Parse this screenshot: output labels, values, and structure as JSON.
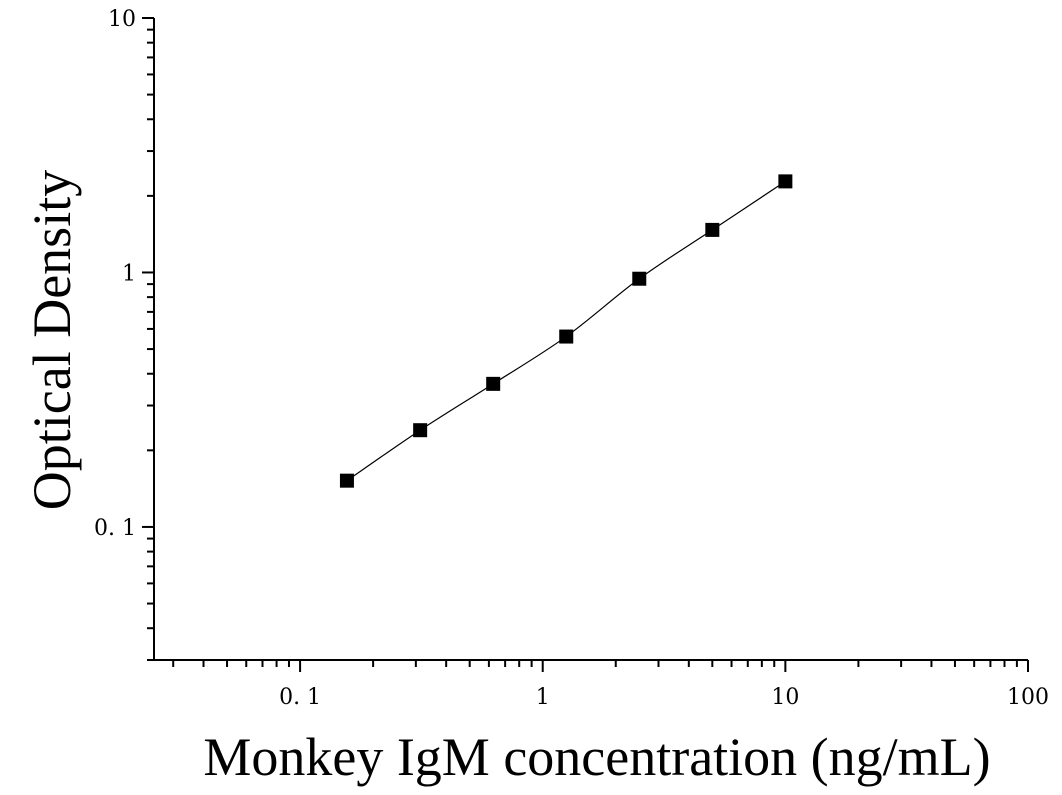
{
  "chart_data": {
    "type": "scatter",
    "xlabel": "Monkey IgM concentration (ng/mL)",
    "ylabel": "Optical Density",
    "x_scale": "log",
    "y_scale": "log",
    "xlim": [
      0.025,
      100
    ],
    "ylim": [
      0.03,
      10
    ],
    "x_ticks": [
      {
        "value": 0.1,
        "label": "0. 1"
      },
      {
        "value": 1,
        "label": "1"
      },
      {
        "value": 10,
        "label": "10"
      },
      {
        "value": 100,
        "label": "100"
      }
    ],
    "y_ticks": [
      {
        "value": 0.1,
        "label": "0. 1"
      },
      {
        "value": 1,
        "label": "1"
      },
      {
        "value": 10,
        "label": "10"
      }
    ],
    "grid": false,
    "marker": "square",
    "marker_color": "#000000",
    "line_color": "#000000",
    "series": [
      {
        "x": [
          0.156,
          0.3125,
          0.625,
          1.25,
          2.5,
          5,
          10
        ],
        "y": [
          0.152,
          0.24,
          0.365,
          0.56,
          0.945,
          1.47,
          2.28
        ]
      }
    ]
  }
}
